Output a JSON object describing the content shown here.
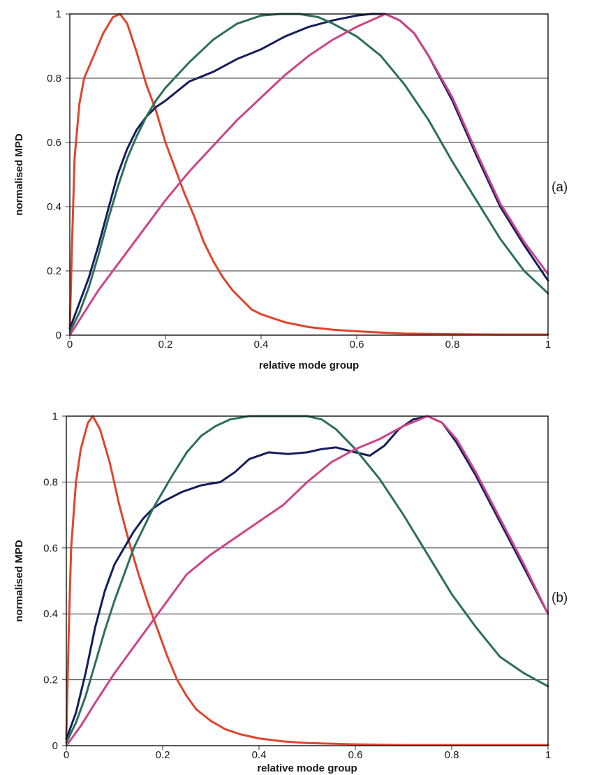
{
  "chart_data": [
    {
      "type": "line",
      "panel_label": "(a)",
      "xlabel": "relative mode group",
      "ylabel": "normalised MPD",
      "xlim": [
        0,
        1
      ],
      "ylim": [
        0,
        1
      ],
      "xticks": [
        "0",
        "0.2",
        "0.4",
        "0.6",
        "0.8",
        "1"
      ],
      "yticks": [
        "0",
        "0.2",
        "0.4",
        "0.6",
        "0.8",
        "1"
      ],
      "grid": "horizontal",
      "series": [
        {
          "color": "#e0452c",
          "points": [
            [
              0,
              0.02
            ],
            [
              0.005,
              0.3
            ],
            [
              0.01,
              0.55
            ],
            [
              0.02,
              0.72
            ],
            [
              0.03,
              0.8
            ],
            [
              0.05,
              0.87
            ],
            [
              0.07,
              0.94
            ],
            [
              0.09,
              0.99
            ],
            [
              0.105,
              1.0
            ],
            [
              0.12,
              0.97
            ],
            [
              0.14,
              0.88
            ],
            [
              0.16,
              0.78
            ],
            [
              0.18,
              0.7
            ],
            [
              0.2,
              0.6
            ],
            [
              0.22,
              0.52
            ],
            [
              0.24,
              0.44
            ],
            [
              0.26,
              0.37
            ],
            [
              0.28,
              0.29
            ],
            [
              0.3,
              0.23
            ],
            [
              0.32,
              0.18
            ],
            [
              0.34,
              0.14
            ],
            [
              0.36,
              0.11
            ],
            [
              0.38,
              0.08
            ],
            [
              0.4,
              0.065
            ],
            [
              0.45,
              0.04
            ],
            [
              0.5,
              0.025
            ],
            [
              0.55,
              0.017
            ],
            [
              0.6,
              0.012
            ],
            [
              0.65,
              0.008
            ],
            [
              0.7,
              0.005
            ],
            [
              0.8,
              0.003
            ],
            [
              0.9,
              0.002
            ],
            [
              1.0,
              0.002
            ]
          ]
        },
        {
          "color": "#141e5c",
          "points": [
            [
              0,
              0.02
            ],
            [
              0.02,
              0.1
            ],
            [
              0.04,
              0.18
            ],
            [
              0.06,
              0.28
            ],
            [
              0.08,
              0.39
            ],
            [
              0.1,
              0.5
            ],
            [
              0.12,
              0.58
            ],
            [
              0.14,
              0.64
            ],
            [
              0.16,
              0.68
            ],
            [
              0.18,
              0.71
            ],
            [
              0.2,
              0.73
            ],
            [
              0.25,
              0.79
            ],
            [
              0.3,
              0.82
            ],
            [
              0.35,
              0.86
            ],
            [
              0.4,
              0.89
            ],
            [
              0.45,
              0.93
            ],
            [
              0.5,
              0.96
            ],
            [
              0.55,
              0.98
            ],
            [
              0.6,
              0.995
            ],
            [
              0.63,
              1.0
            ],
            [
              0.66,
              1.0
            ],
            [
              0.69,
              0.98
            ],
            [
              0.72,
              0.94
            ],
            [
              0.75,
              0.87
            ],
            [
              0.8,
              0.73
            ],
            [
              0.85,
              0.56
            ],
            [
              0.9,
              0.4
            ],
            [
              0.95,
              0.28
            ],
            [
              1.0,
              0.17
            ]
          ]
        },
        {
          "color": "#2e6e5a",
          "points": [
            [
              0,
              0.01
            ],
            [
              0.02,
              0.07
            ],
            [
              0.04,
              0.15
            ],
            [
              0.06,
              0.25
            ],
            [
              0.08,
              0.36
            ],
            [
              0.1,
              0.46
            ],
            [
              0.12,
              0.55
            ],
            [
              0.14,
              0.62
            ],
            [
              0.16,
              0.68
            ],
            [
              0.18,
              0.73
            ],
            [
              0.2,
              0.77
            ],
            [
              0.25,
              0.85
            ],
            [
              0.3,
              0.92
            ],
            [
              0.35,
              0.97
            ],
            [
              0.4,
              0.995
            ],
            [
              0.44,
              1.0
            ],
            [
              0.48,
              1.0
            ],
            [
              0.52,
              0.99
            ],
            [
              0.55,
              0.97
            ],
            [
              0.6,
              0.93
            ],
            [
              0.65,
              0.87
            ],
            [
              0.7,
              0.78
            ],
            [
              0.75,
              0.67
            ],
            [
              0.8,
              0.54
            ],
            [
              0.85,
              0.42
            ],
            [
              0.9,
              0.3
            ],
            [
              0.95,
              0.2
            ],
            [
              1.0,
              0.13
            ]
          ]
        },
        {
          "color": "#cc4488",
          "points": [
            [
              0,
              0.0
            ],
            [
              0.03,
              0.07
            ],
            [
              0.06,
              0.14
            ],
            [
              0.1,
              0.22
            ],
            [
              0.15,
              0.32
            ],
            [
              0.2,
              0.42
            ],
            [
              0.25,
              0.51
            ],
            [
              0.3,
              0.59
            ],
            [
              0.35,
              0.67
            ],
            [
              0.4,
              0.74
            ],
            [
              0.45,
              0.81
            ],
            [
              0.5,
              0.87
            ],
            [
              0.55,
              0.92
            ],
            [
              0.6,
              0.96
            ],
            [
              0.63,
              0.98
            ],
            [
              0.66,
              1.0
            ],
            [
              0.69,
              0.98
            ],
            [
              0.72,
              0.94
            ],
            [
              0.75,
              0.87
            ],
            [
              0.8,
              0.74
            ],
            [
              0.85,
              0.57
            ],
            [
              0.9,
              0.41
            ],
            [
              0.95,
              0.29
            ],
            [
              1.0,
              0.19
            ]
          ]
        }
      ]
    },
    {
      "type": "line",
      "panel_label": "(b)",
      "xlabel": "relative mode group",
      "ylabel": "normalised MPD",
      "xlim": [
        0,
        1
      ],
      "ylim": [
        0,
        1
      ],
      "xticks": [
        "0",
        "0.2",
        "0.4",
        "0.6",
        "0.8",
        "1"
      ],
      "yticks": [
        "0",
        "0.2",
        "0.4",
        "0.6",
        "0.8",
        "1"
      ],
      "grid": "horizontal",
      "series": [
        {
          "color": "#e0452c",
          "points": [
            [
              0,
              0.02
            ],
            [
              0.005,
              0.35
            ],
            [
              0.01,
              0.6
            ],
            [
              0.02,
              0.8
            ],
            [
              0.03,
              0.9
            ],
            [
              0.045,
              0.98
            ],
            [
              0.055,
              1.0
            ],
            [
              0.07,
              0.96
            ],
            [
              0.09,
              0.86
            ],
            [
              0.11,
              0.73
            ],
            [
              0.13,
              0.62
            ],
            [
              0.15,
              0.52
            ],
            [
              0.17,
              0.43
            ],
            [
              0.19,
              0.35
            ],
            [
              0.21,
              0.27
            ],
            [
              0.23,
              0.2
            ],
            [
              0.25,
              0.15
            ],
            [
              0.27,
              0.11
            ],
            [
              0.3,
              0.075
            ],
            [
              0.33,
              0.05
            ],
            [
              0.36,
              0.035
            ],
            [
              0.4,
              0.022
            ],
            [
              0.45,
              0.013
            ],
            [
              0.5,
              0.008
            ],
            [
              0.6,
              0.004
            ],
            [
              0.7,
              0.002
            ],
            [
              0.8,
              0.002
            ],
            [
              1.0,
              0.002
            ]
          ]
        },
        {
          "color": "#141e5c",
          "points": [
            [
              0,
              0.02
            ],
            [
              0.02,
              0.1
            ],
            [
              0.04,
              0.22
            ],
            [
              0.06,
              0.36
            ],
            [
              0.08,
              0.47
            ],
            [
              0.1,
              0.55
            ],
            [
              0.12,
              0.6
            ],
            [
              0.14,
              0.65
            ],
            [
              0.16,
              0.69
            ],
            [
              0.18,
              0.72
            ],
            [
              0.2,
              0.74
            ],
            [
              0.24,
              0.77
            ],
            [
              0.28,
              0.79
            ],
            [
              0.32,
              0.8
            ],
            [
              0.35,
              0.83
            ],
            [
              0.38,
              0.87
            ],
            [
              0.42,
              0.89
            ],
            [
              0.46,
              0.885
            ],
            [
              0.5,
              0.89
            ],
            [
              0.53,
              0.9
            ],
            [
              0.56,
              0.905
            ],
            [
              0.6,
              0.89
            ],
            [
              0.63,
              0.88
            ],
            [
              0.66,
              0.91
            ],
            [
              0.69,
              0.96
            ],
            [
              0.72,
              0.99
            ],
            [
              0.75,
              1.0
            ],
            [
              0.78,
              0.98
            ],
            [
              0.81,
              0.92
            ],
            [
              0.85,
              0.82
            ],
            [
              0.9,
              0.68
            ],
            [
              0.95,
              0.54
            ],
            [
              1.0,
              0.4
            ]
          ]
        },
        {
          "color": "#2e6e5a",
          "points": [
            [
              0,
              0.01
            ],
            [
              0.02,
              0.07
            ],
            [
              0.04,
              0.15
            ],
            [
              0.06,
              0.25
            ],
            [
              0.08,
              0.35
            ],
            [
              0.1,
              0.44
            ],
            [
              0.12,
              0.52
            ],
            [
              0.14,
              0.6
            ],
            [
              0.16,
              0.66
            ],
            [
              0.18,
              0.72
            ],
            [
              0.2,
              0.77
            ],
            [
              0.22,
              0.82
            ],
            [
              0.25,
              0.89
            ],
            [
              0.28,
              0.94
            ],
            [
              0.31,
              0.97
            ],
            [
              0.34,
              0.99
            ],
            [
              0.38,
              1.0
            ],
            [
              0.42,
              1.0
            ],
            [
              0.46,
              1.0
            ],
            [
              0.5,
              1.0
            ],
            [
              0.53,
              0.99
            ],
            [
              0.56,
              0.96
            ],
            [
              0.6,
              0.9
            ],
            [
              0.65,
              0.81
            ],
            [
              0.7,
              0.7
            ],
            [
              0.75,
              0.58
            ],
            [
              0.8,
              0.46
            ],
            [
              0.85,
              0.36
            ],
            [
              0.9,
              0.27
            ],
            [
              0.95,
              0.22
            ],
            [
              1.0,
              0.18
            ]
          ]
        },
        {
          "color": "#cc4488",
          "points": [
            [
              0,
              0.0
            ],
            [
              0.03,
              0.06
            ],
            [
              0.06,
              0.13
            ],
            [
              0.1,
              0.22
            ],
            [
              0.15,
              0.32
            ],
            [
              0.2,
              0.42
            ],
            [
              0.25,
              0.52
            ],
            [
              0.3,
              0.58
            ],
            [
              0.35,
              0.63
            ],
            [
              0.4,
              0.68
            ],
            [
              0.45,
              0.73
            ],
            [
              0.5,
              0.8
            ],
            [
              0.55,
              0.86
            ],
            [
              0.6,
              0.9
            ],
            [
              0.65,
              0.93
            ],
            [
              0.7,
              0.97
            ],
            [
              0.75,
              1.0
            ],
            [
              0.78,
              0.98
            ],
            [
              0.81,
              0.93
            ],
            [
              0.85,
              0.83
            ],
            [
              0.9,
              0.69
            ],
            [
              0.95,
              0.55
            ],
            [
              1.0,
              0.4
            ]
          ]
        }
      ]
    }
  ]
}
